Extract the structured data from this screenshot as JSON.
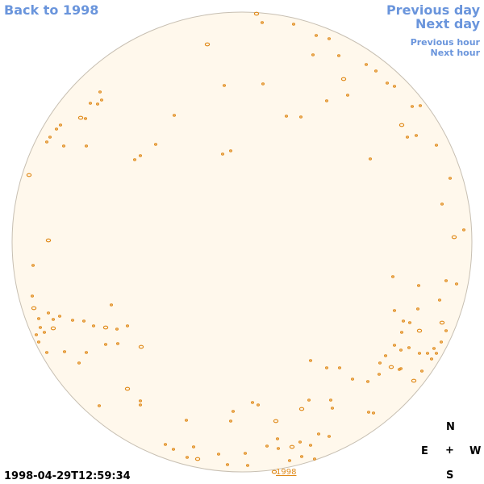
{
  "navigation": {
    "back_label": "Back to 1998",
    "previous_day_label": "Previous day",
    "next_day_label": "Next day",
    "previous_hour_label": "Previous hour",
    "next_hour_label": "Next hour"
  },
  "observation": {
    "timestamp": "1998-04-29T12:59:34",
    "year_link": "1998"
  },
  "compass": {
    "north": "N",
    "east": "E",
    "center": "+",
    "west": "W",
    "south": "S"
  },
  "colors": {
    "link": "#6a95dc",
    "disk_fill": "#fff8ec",
    "disk_edge": "#c7bfb2",
    "contour": "#e08a1a"
  }
}
